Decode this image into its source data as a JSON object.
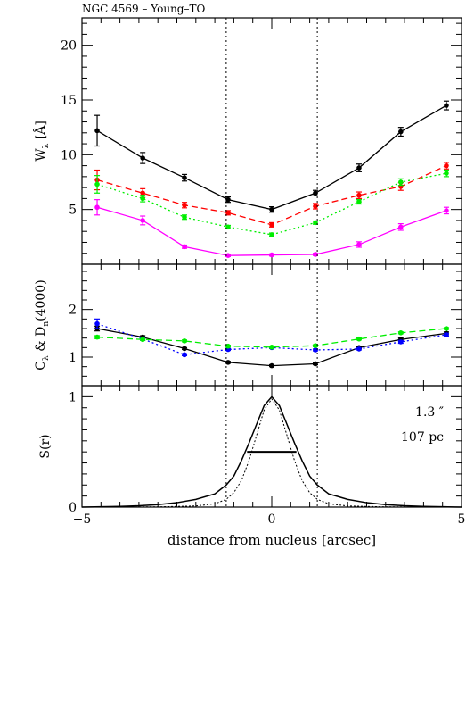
{
  "figure": {
    "title": "NGC 4569   –   Young–TO"
  },
  "chart_data": [
    {
      "type": "line",
      "panel": "top",
      "xlabel": "",
      "ylabel_main": "W",
      "ylabel_sub": "λ",
      "ylabel_unit": " [Å]",
      "xlim": [
        -5,
        5
      ],
      "ylim": [
        0,
        22.5
      ],
      "yticks": [
        5,
        10,
        15,
        20
      ],
      "ytick_labels": [
        "5",
        "10",
        "15",
        "20"
      ],
      "x": [
        -4.6,
        -3.4,
        -2.3,
        -1.15,
        0,
        1.15,
        2.3,
        3.4,
        4.6
      ],
      "series": [
        {
          "color": "#000000",
          "dash": "solid",
          "values": [
            12.2,
            9.7,
            7.9,
            5.9,
            5.0,
            6.5,
            8.8,
            12.1,
            14.5
          ],
          "errors": [
            1.4,
            0.5,
            0.3,
            0.25,
            0.25,
            0.25,
            0.35,
            0.4,
            0.4
          ]
        },
        {
          "color": "#ff0000",
          "dash": "dashed",
          "values": [
            7.7,
            6.5,
            5.4,
            4.7,
            3.6,
            5.3,
            6.3,
            7.1,
            9.0
          ],
          "errors": [
            0.9,
            0.4,
            0.25,
            0.2,
            0.2,
            0.25,
            0.3,
            0.35,
            0.3
          ]
        },
        {
          "color": "#00ee00",
          "dash": "dotted",
          "values": [
            7.3,
            6.0,
            4.3,
            3.4,
            2.7,
            3.8,
            5.7,
            7.5,
            8.3
          ],
          "errors": [
            0.8,
            0.3,
            0.2,
            0.15,
            0.15,
            0.15,
            0.2,
            0.3,
            0.3
          ]
        },
        {
          "color": "#ff00ff",
          "dash": "solid",
          "values": [
            5.2,
            4.0,
            1.6,
            0.8,
            0.85,
            0.9,
            1.8,
            3.4,
            4.9
          ],
          "errors": [
            0.7,
            0.4,
            0.15,
            0.1,
            0.1,
            0.1,
            0.25,
            0.3,
            0.3
          ]
        }
      ]
    },
    {
      "type": "line",
      "panel": "middle",
      "xlabel": "",
      "ylabel_c": "C",
      "ylabel_c_sub": "λ",
      "ylabel_mid": " & D",
      "ylabel_d_sub": "n",
      "ylabel_end": "(4000)",
      "xlim": [
        -5,
        5
      ],
      "ylim": [
        0.4,
        2.95
      ],
      "yticks": [
        1,
        2
      ],
      "ytick_labels": [
        "1",
        "2"
      ],
      "x": [
        -4.6,
        -3.4,
        -2.3,
        -1.15,
        0,
        1.15,
        2.3,
        3.4,
        4.6
      ],
      "series": [
        {
          "color": "#000000",
          "dash": "solid",
          "values": [
            1.6,
            1.42,
            1.18,
            0.89,
            0.82,
            0.86,
            1.2,
            1.37,
            1.5
          ],
          "errors": [
            0.05,
            0.03,
            0.02,
            0.02,
            0.02,
            0.02,
            0.02,
            0.03,
            0.03
          ]
        },
        {
          "color": "#0000ff",
          "dash": "dotted",
          "values": [
            1.7,
            1.38,
            1.05,
            1.16,
            1.2,
            1.15,
            1.17,
            1.32,
            1.47
          ],
          "errors": [
            0.1,
            0.03,
            0.02,
            0.02,
            0.02,
            0.02,
            0.02,
            0.03,
            0.03
          ]
        },
        {
          "color": "#00ee00",
          "dash": "dashed",
          "values": [
            1.42,
            1.37,
            1.34,
            1.23,
            1.21,
            1.24,
            1.38,
            1.51,
            1.6
          ],
          "errors": [
            0.03,
            0.02,
            0.02,
            0.02,
            0.02,
            0.02,
            0.02,
            0.02,
            0.02
          ]
        }
      ]
    },
    {
      "type": "line",
      "panel": "bottom",
      "xlabel": "distance from nucleus [arcsec]",
      "ylabel": "S(r)",
      "xlim": [
        -5,
        5
      ],
      "ylim": [
        0,
        1.1
      ],
      "yticks": [
        0,
        1
      ],
      "ytick_labels": [
        "0",
        "1"
      ],
      "xticks": [
        -5,
        0,
        5
      ],
      "xtick_labels": [
        "−5",
        "0",
        "5"
      ],
      "annotations": [
        "1.3 ″",
        "107 pc"
      ],
      "fwhm_arcsec": 1.3,
      "broad_profile": {
        "x": [
          -5,
          -4.5,
          -4,
          -3.5,
          -3,
          -2.5,
          -2,
          -1.5,
          -1.2,
          -1,
          -0.8,
          -0.6,
          -0.4,
          -0.2,
          0,
          0.2,
          0.4,
          0.6,
          0.8,
          1,
          1.2,
          1.5,
          2,
          2.5,
          3,
          3.5,
          4,
          4.5,
          5
        ],
        "y": [
          0.0,
          0.003,
          0.006,
          0.012,
          0.022,
          0.04,
          0.07,
          0.12,
          0.2,
          0.28,
          0.42,
          0.58,
          0.75,
          0.92,
          1.0,
          0.92,
          0.75,
          0.58,
          0.42,
          0.28,
          0.2,
          0.12,
          0.07,
          0.04,
          0.022,
          0.012,
          0.006,
          0.003,
          0.0
        ]
      },
      "narrow_profile": {
        "x": [
          -5,
          -3,
          -2,
          -1.5,
          -1.2,
          -1,
          -0.8,
          -0.6,
          -0.4,
          -0.2,
          0,
          0.2,
          0.4,
          0.6,
          0.8,
          1,
          1.2,
          1.5,
          2,
          3,
          5
        ],
        "y": [
          0.0,
          0.002,
          0.01,
          0.03,
          0.07,
          0.13,
          0.24,
          0.42,
          0.65,
          0.88,
          0.98,
          0.88,
          0.65,
          0.42,
          0.24,
          0.13,
          0.07,
          0.03,
          0.01,
          0.002,
          0.0
        ]
      },
      "fwhm_bar": {
        "x": [
          -0.65,
          0.65
        ],
        "y": 0.5
      }
    }
  ],
  "guides": {
    "vlines_x": [
      -1.2,
      1.2
    ]
  }
}
